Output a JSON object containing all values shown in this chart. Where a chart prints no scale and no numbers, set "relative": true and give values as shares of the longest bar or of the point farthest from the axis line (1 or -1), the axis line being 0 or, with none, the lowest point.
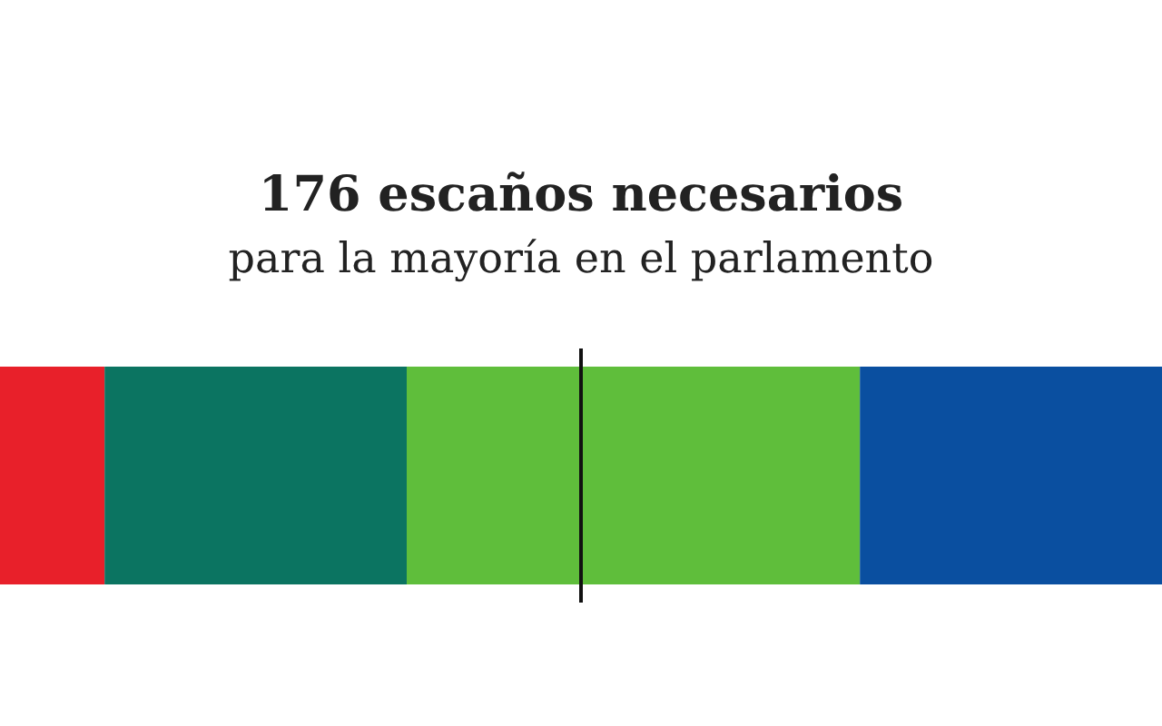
{
  "chart_data": {
    "type": "bar",
    "title": "176 escaños necesarios",
    "subtitle": "para la mayoría en el parlamento",
    "orientation": "horizontal",
    "stacked": true,
    "relative": true,
    "categories": [
      null
    ],
    "series": [
      {
        "color": "#e8202a",
        "values": [
          0.09
        ]
      },
      {
        "color": "#0b7461",
        "values": [
          0.26
        ]
      },
      {
        "color": "#5fbe3b",
        "values": [
          0.39
        ]
      },
      {
        "color": "#0a4fa0",
        "values": [
          0.26
        ]
      }
    ],
    "ref_lines": [
      {
        "axis": "x",
        "value": 0.5,
        "color": "#111111"
      }
    ]
  }
}
